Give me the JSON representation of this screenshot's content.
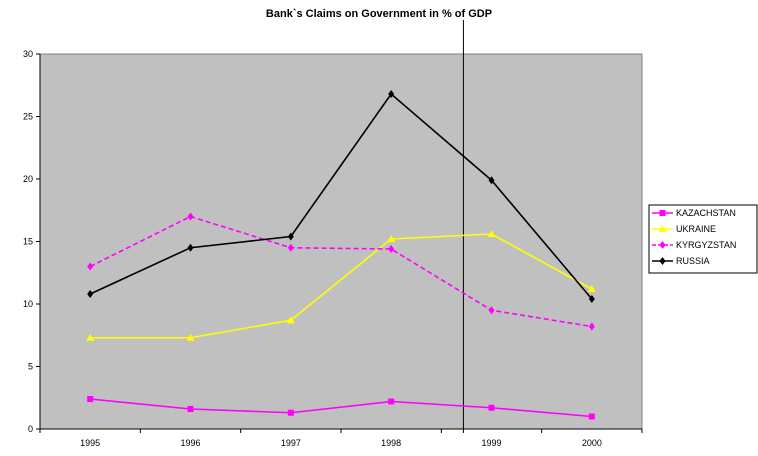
{
  "chart_data": {
    "type": "line",
    "title": "Bank`s Claims on Government in % of GDP",
    "xlabel": "",
    "ylabel": "",
    "categories": [
      "1995",
      "1996",
      "1997",
      "1998",
      "1999",
      "2000"
    ],
    "ylim": [
      0,
      30
    ],
    "yticks": [
      "0",
      "5",
      "10",
      "15",
      "20",
      "25",
      "30"
    ],
    "plot_background": "#c0c0c0",
    "grid": false,
    "legend_position": "right",
    "vertical_marker": {
      "between": [
        "1998",
        "1999"
      ],
      "fraction": 0.72
    },
    "series": [
      {
        "name": "KAZACHSTAN",
        "values": [
          2.4,
          1.6,
          1.3,
          2.2,
          1.7,
          1.0
        ],
        "color": "#ff00ff",
        "marker": "square",
        "dash": "solid"
      },
      {
        "name": "UKRAINE",
        "values": [
          7.3,
          7.3,
          8.7,
          15.2,
          15.6,
          11.2
        ],
        "color": "#ffff00",
        "marker": "triangle",
        "dash": "solid"
      },
      {
        "name": "KYRGYZSTAN",
        "values": [
          13.0,
          17.0,
          14.5,
          14.4,
          9.5,
          8.2
        ],
        "color": "#ff00ff",
        "marker": "diamond",
        "dash": "dashed"
      },
      {
        "name": "RUSSIA",
        "values": [
          10.8,
          14.5,
          15.4,
          26.8,
          19.9,
          10.4
        ],
        "color": "#000000",
        "marker": "diamond",
        "dash": "solid"
      }
    ]
  }
}
